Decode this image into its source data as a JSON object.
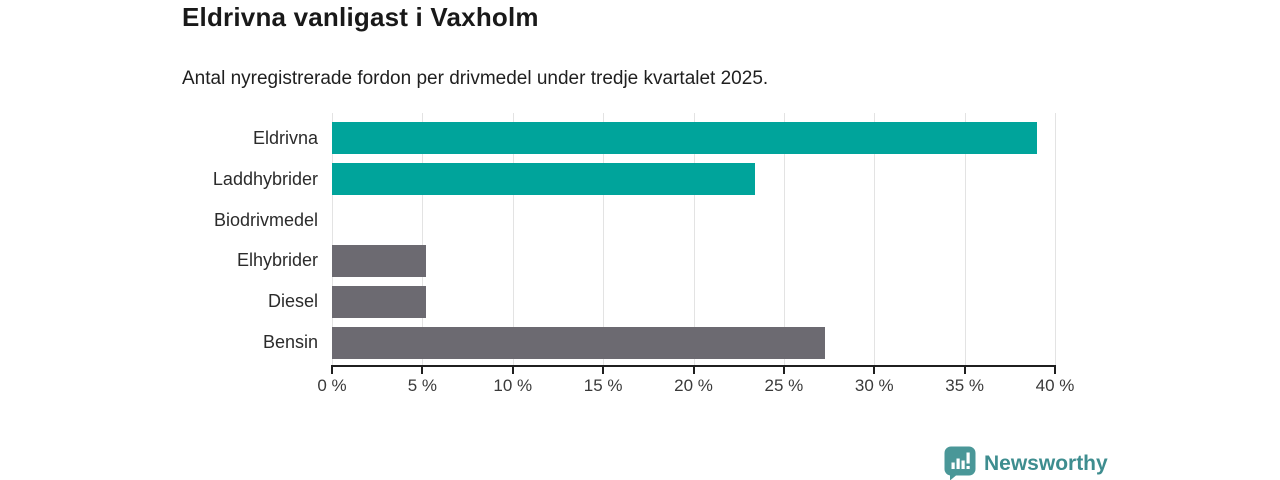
{
  "chart_data": {
    "type": "bar",
    "orientation": "horizontal",
    "title": "Eldrivna vanligast i Vaxholm",
    "subtitle": "Antal nyregistrerade fordon per drivmedel under tredje kvartalet 2025.",
    "categories": [
      "Eldrivna",
      "Laddhybrider",
      "Biodrivmedel",
      "Elhybrider",
      "Diesel",
      "Bensin"
    ],
    "values": [
      39,
      23.4,
      0,
      5.2,
      5.2,
      27.3
    ],
    "unit": "%",
    "xlabel": "",
    "ylabel": "",
    "xlim": [
      0,
      40
    ],
    "x_ticks": [
      "0 %",
      "5 %",
      "10 %",
      "15 %",
      "20 %",
      "25 %",
      "30 %",
      "35 %",
      "40 %"
    ],
    "x_tick_values": [
      0,
      5,
      10,
      15,
      20,
      25,
      30,
      35,
      40
    ],
    "bar_colors": [
      "#00a49b",
      "#00a49b",
      "#00a49b",
      "#6c6a71",
      "#6c6a71",
      "#6c6a71"
    ],
    "grid": "vertical",
    "legend": "none"
  },
  "colors": {
    "teal_bar": "#00a49b",
    "gray_bar": "#6c6a71",
    "gridline": "#e3e3e3",
    "axis": "#1f1f1f",
    "title_text": "#191919",
    "logo_icon_bg": "#4a9798",
    "logo_text": "#3e8d8f"
  },
  "branding": {
    "logo_text": "Newsworthy",
    "logo_icon": "bar-chart-speech-bubble-icon"
  }
}
